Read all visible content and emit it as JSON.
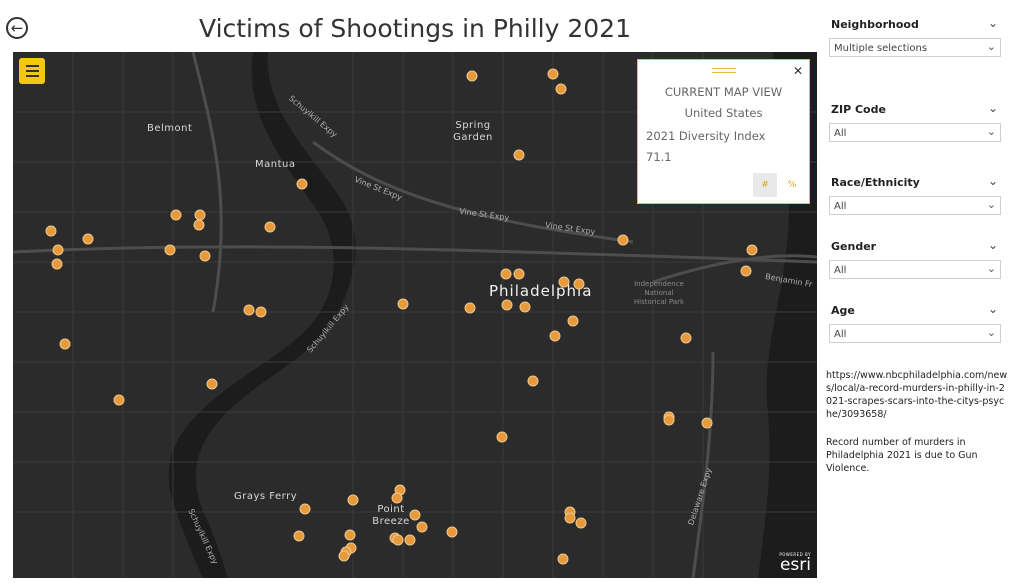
{
  "title": "Victims of Shootings in Philly 2021",
  "icons": {
    "back": "back-arrow-icon",
    "menu": "hamburger-menu-icon",
    "close": "close-icon",
    "chevron": "chevron-down-icon"
  },
  "colors": {
    "accent": "#f2c811",
    "marker": "#e69a3c",
    "map_bg": "#2b2b2b"
  },
  "map": {
    "places": [
      "Belmont",
      "Mantua",
      "Spring Garden",
      "Grays Ferry",
      "Point Breeze"
    ],
    "roads": [
      "Schuylkill Expy",
      "Vine St Expy",
      "Vine St Expy",
      "Vine St Expy",
      "Schuylkill Expy",
      "Delaware Expy",
      "Schuylkill Expy",
      "Benjamin Fr"
    ],
    "city": "Philadelphia",
    "park": "Independence National Historical Park",
    "attribution_small": "POWERED BY",
    "attribution": "esri"
  },
  "popup": {
    "heading": "CURRENT MAP VIEW",
    "location": "United States",
    "metric_label": "2021 Diversity Index",
    "metric_value": "71.1",
    "toggle_count": "#",
    "toggle_percent": "%"
  },
  "filters": [
    {
      "label": "Neighborhood",
      "value": "Multiple selections"
    },
    {
      "label": "ZIP Code",
      "value": "All"
    },
    {
      "label": "Race/Ethnicity",
      "value": "All"
    },
    {
      "label": "Gender",
      "value": "All"
    },
    {
      "label": "Age",
      "value": "All"
    }
  ],
  "source_url": "https://www.nbcphiladelphia.com/news/local/a-record-murders-in-philly-in-2021-scrapes-scars-into-the-citys-psyche/3093658/",
  "note": "Record number of murders in Philadelphia 2021 is due to Gun Violence."
}
